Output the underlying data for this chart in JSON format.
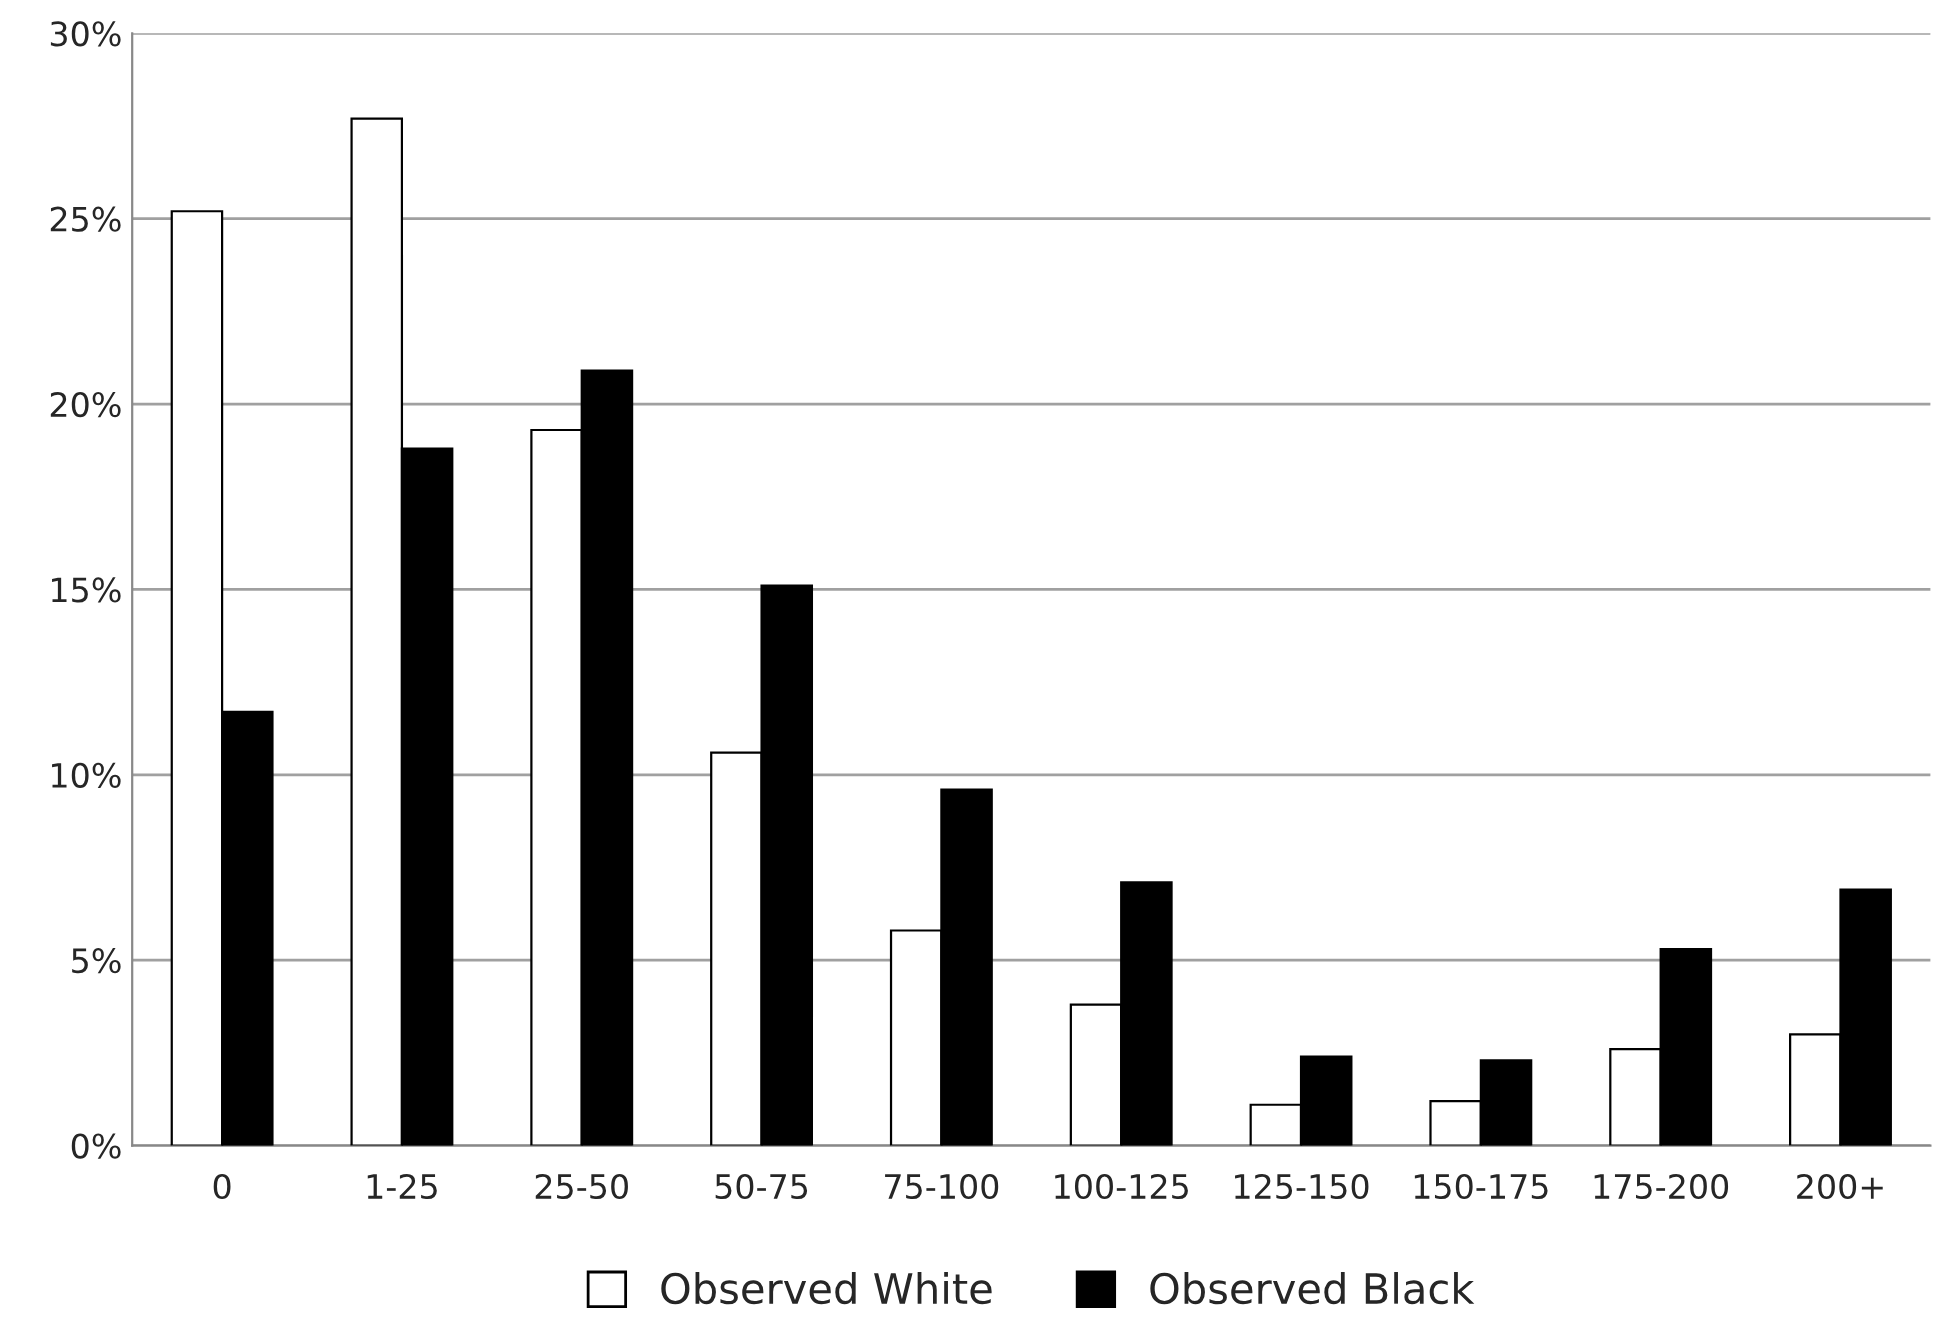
{
  "chart_data": {
    "type": "bar",
    "categories": [
      "0",
      "1-25",
      "25-50",
      "50-75",
      "75-100",
      "100-125",
      "125-150",
      "150-175",
      "175-200",
      "200+"
    ],
    "series": [
      {
        "name": "Observed White",
        "color": "#ffffff",
        "values": [
          25.2,
          27.7,
          19.3,
          10.6,
          5.8,
          3.8,
          1.1,
          1.2,
          2.6,
          3.0
        ]
      },
      {
        "name": "Observed Black",
        "color": "#000000",
        "values": [
          11.7,
          18.8,
          20.9,
          15.1,
          9.6,
          7.1,
          2.4,
          2.3,
          5.3,
          6.9
        ]
      }
    ],
    "ylim": [
      0,
      30
    ],
    "yticks": [
      {
        "value": 0,
        "label": "0%"
      },
      {
        "value": 5,
        "label": "5%"
      },
      {
        "value": 10,
        "label": "10%"
      },
      {
        "value": 15,
        "label": "15%"
      },
      {
        "value": 20,
        "label": "20%"
      },
      {
        "value": 25,
        "label": "25%"
      },
      {
        "value": 30,
        "label": "30%"
      }
    ],
    "grid": "y",
    "legend": "bottom"
  }
}
